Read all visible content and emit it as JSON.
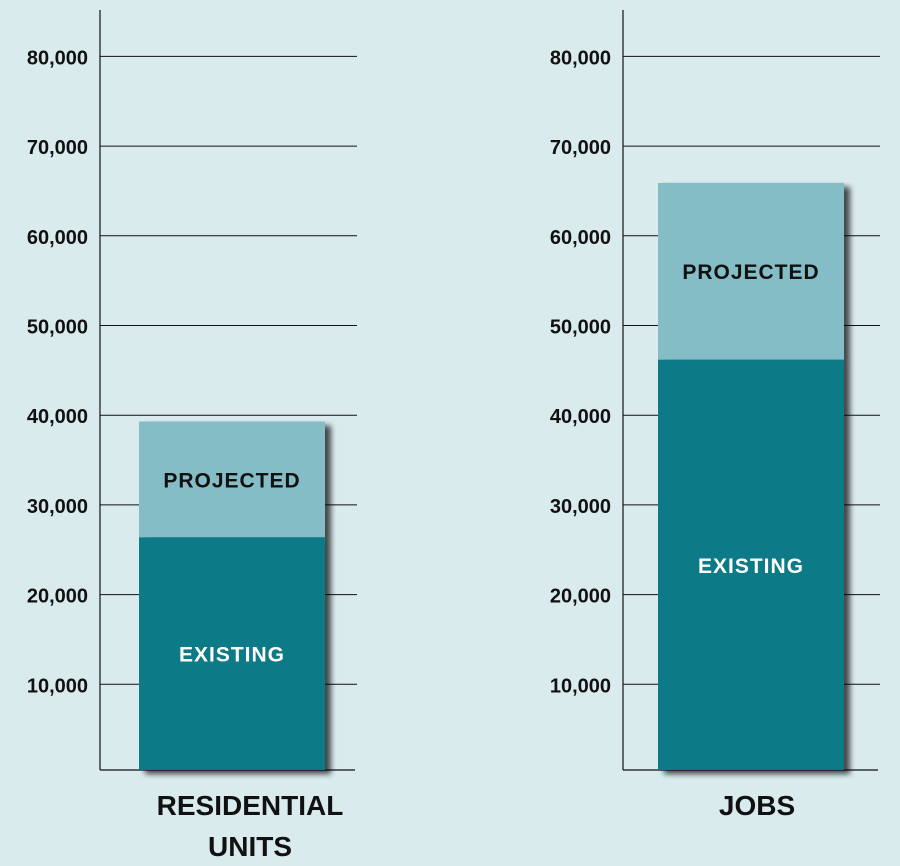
{
  "chart_data": [
    {
      "type": "bar",
      "stacked": true,
      "categories": [
        "RESIDENTIAL UNITS"
      ],
      "category_lines": [
        "RESIDENTIAL",
        "UNITS"
      ],
      "series": [
        {
          "name": "EXISTING",
          "values": [
            26400
          ],
          "color": "#0e7a87",
          "label_color": "#ffffff"
        },
        {
          "name": "PROJECTED",
          "values": [
            12900
          ],
          "color": "#85bdc7",
          "label_color": "#111111"
        }
      ],
      "yticks": [
        "10,000",
        "20,000",
        "30,000",
        "40,000",
        "50,000",
        "60,000",
        "70,000",
        "80,000"
      ],
      "ytick_values": [
        10000,
        20000,
        30000,
        40000,
        50000,
        60000,
        70000,
        80000
      ],
      "ylim": [
        0,
        85000
      ],
      "grid": true
    },
    {
      "type": "bar",
      "stacked": true,
      "categories": [
        "JOBS"
      ],
      "category_lines": [
        "JOBS"
      ],
      "series": [
        {
          "name": "EXISTING",
          "values": [
            46200
          ],
          "color": "#0e7a87",
          "label_color": "#ffffff"
        },
        {
          "name": "PROJECTED",
          "values": [
            19700
          ],
          "color": "#85bdc7",
          "label_color": "#111111"
        }
      ],
      "yticks": [
        "10,000",
        "20,000",
        "30,000",
        "40,000",
        "50,000",
        "60,000",
        "70,000",
        "80,000"
      ],
      "ytick_values": [
        10000,
        20000,
        30000,
        40000,
        50000,
        60000,
        70000,
        80000
      ],
      "ylim": [
        0,
        85000
      ],
      "grid": true
    }
  ]
}
